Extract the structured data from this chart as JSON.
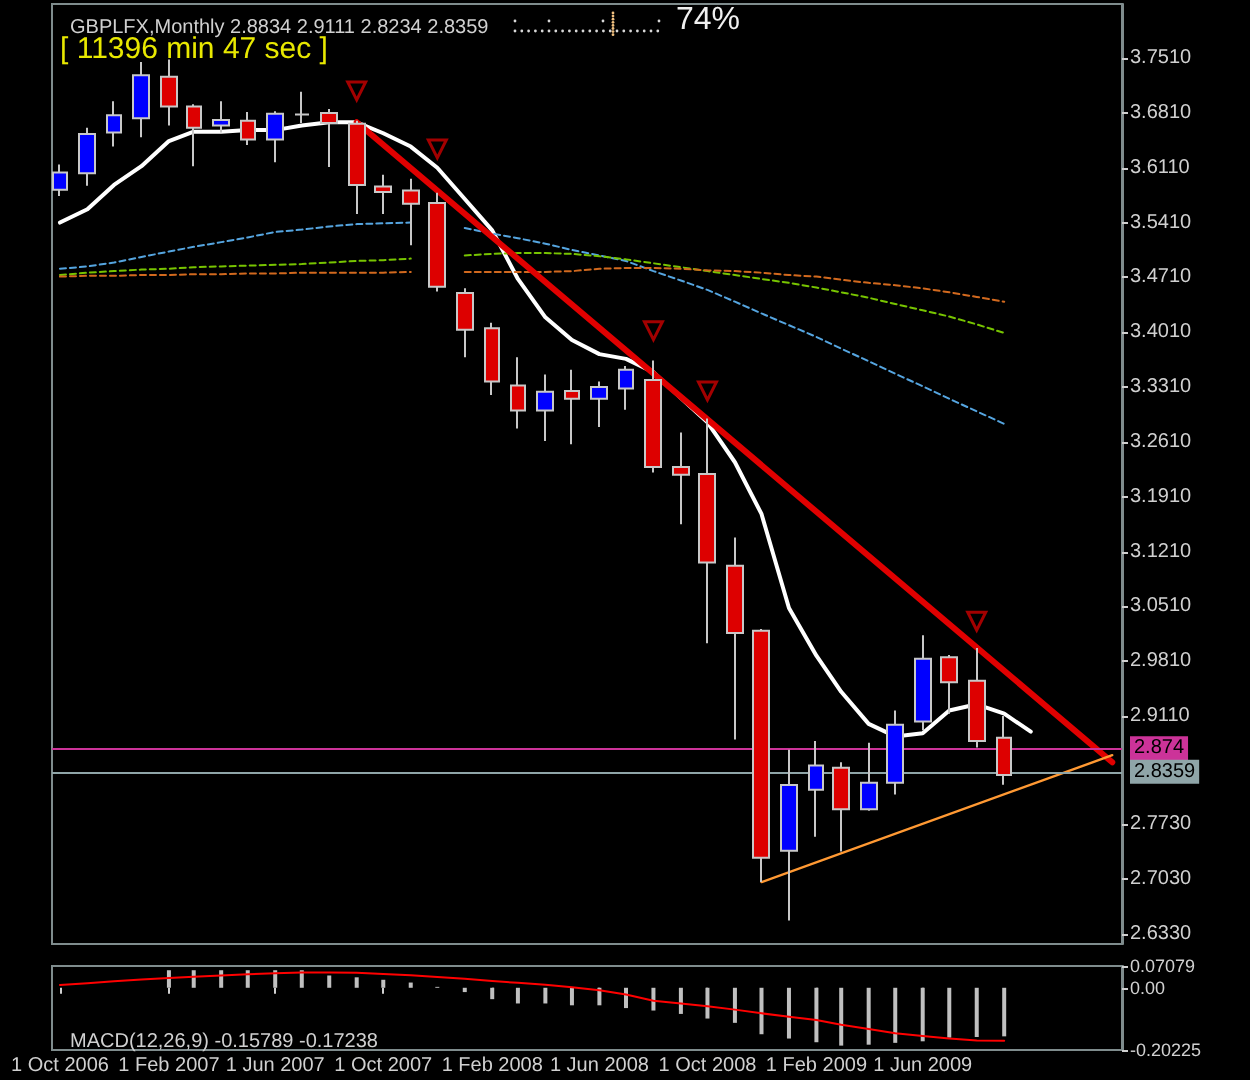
{
  "chart_data": [
    {
      "type": "candlestick",
      "title": "GBPLFX,Monthly 2.8834 2.9111 2.8234 2.8359",
      "annotations": [
        "[ 11396 min 47 sec ]",
        "74%"
      ],
      "x": [
        "2006-10",
        "2006-11",
        "2006-12",
        "2007-01",
        "2007-02",
        "2007-03",
        "2007-04",
        "2007-05",
        "2007-06",
        "2007-07",
        "2007-08",
        "2007-09",
        "2007-10",
        "2007-11",
        "2007-12",
        "2008-01",
        "2008-02",
        "2008-03",
        "2008-04",
        "2008-05",
        "2008-06",
        "2008-07",
        "2008-08",
        "2008-09",
        "2008-10",
        "2008-11",
        "2008-12",
        "2009-01",
        "2009-02",
        "2009-03",
        "2009-04",
        "2009-05",
        "2009-06",
        "2009-07",
        "2009-08",
        "2009-09"
      ],
      "ohlc": [
        [
          3.583,
          3.615,
          3.575,
          3.605
        ],
        [
          3.604,
          3.662,
          3.588,
          3.654
        ],
        [
          3.656,
          3.696,
          3.638,
          3.678
        ],
        [
          3.674,
          3.746,
          3.65,
          3.729
        ],
        [
          3.727,
          3.749,
          3.665,
          3.689
        ],
        [
          3.689,
          3.692,
          3.613,
          3.662
        ],
        [
          3.665,
          3.696,
          3.656,
          3.672
        ],
        [
          3.671,
          3.682,
          3.64,
          3.647
        ],
        [
          3.647,
          3.683,
          3.618,
          3.68
        ],
        [
          3.679,
          3.708,
          3.668,
          3.679
        ],
        [
          3.681,
          3.686,
          3.612,
          3.668
        ],
        [
          3.667,
          3.671,
          3.552,
          3.589
        ],
        [
          3.587,
          3.602,
          3.552,
          3.58
        ],
        [
          3.582,
          3.597,
          3.512,
          3.565
        ],
        [
          3.566,
          3.579,
          3.453,
          3.459
        ],
        [
          3.451,
          3.457,
          3.369,
          3.404
        ],
        [
          3.406,
          3.413,
          3.321,
          3.338
        ],
        [
          3.333,
          3.369,
          3.278,
          3.301
        ],
        [
          3.301,
          3.347,
          3.262,
          3.325
        ],
        [
          3.326,
          3.353,
          3.258,
          3.316
        ],
        [
          3.316,
          3.338,
          3.28,
          3.331
        ],
        [
          3.329,
          3.358,
          3.302,
          3.353
        ],
        [
          3.34,
          3.365,
          3.222,
          3.229
        ],
        [
          3.229,
          3.273,
          3.156,
          3.219
        ],
        [
          3.22,
          3.291,
          3.004,
          3.107
        ],
        [
          3.103,
          3.139,
          2.881,
          3.017
        ],
        [
          3.02,
          3.022,
          2.699,
          2.73
        ],
        [
          2.739,
          2.868,
          2.65,
          2.823
        ],
        [
          2.817,
          2.879,
          2.757,
          2.848
        ],
        [
          2.845,
          2.852,
          2.738,
          2.792
        ],
        [
          2.792,
          2.877,
          2.79,
          2.826
        ],
        [
          2.826,
          2.918,
          2.811,
          2.9
        ],
        [
          2.904,
          3.014,
          2.893,
          2.984
        ],
        [
          2.986,
          2.989,
          2.914,
          2.954
        ],
        [
          2.956,
          2.998,
          2.871,
          2.879
        ],
        [
          2.8834,
          2.9111,
          2.8234,
          2.8359
        ]
      ],
      "colors": [
        "#0000ff",
        "#0000ff",
        "#0000ff",
        "#0000ff",
        "#dd0000",
        "#dd0000",
        "#0000ff",
        "#dd0000",
        "#0000ff",
        "#c8c8c8",
        "#dd0000",
        "#dd0000",
        "#dd0000",
        "#dd0000",
        "#dd0000",
        "#dd0000",
        "#dd0000",
        "#dd0000",
        "#0000ff",
        "#dd0000",
        "#0000ff",
        "#0000ff",
        "#dd0000",
        "#dd0000",
        "#dd0000",
        "#dd0000",
        "#dd0000",
        "#0000ff",
        "#0000ff",
        "#dd0000",
        "#0000ff",
        "#0000ff",
        "#0000ff",
        "#dd0000",
        "#dd0000",
        "#dd0000"
      ],
      "series": [
        {
          "type": "line",
          "color": "#ffffff",
          "x": [
            "2006-10",
            "2006-11",
            "2006-12",
            "2007-01",
            "2007-02",
            "2007-03",
            "2007-04",
            "2007-05",
            "2007-06",
            "2007-07",
            "2007-08",
            "2007-09",
            "2007-10",
            "2007-11",
            "2007-12",
            "2008-01",
            "2008-02",
            "2008-03",
            "2008-04",
            "2008-05",
            "2008-06",
            "2008-07",
            "2008-08",
            "2008-09",
            "2008-10",
            "2008-11",
            "2008-12",
            "2009-01",
            "2009-02",
            "2009-03",
            "2009-04",
            "2009-05",
            "2009-06",
            "2009-07",
            "2009-08",
            "2009-09",
            "2009-10"
          ],
          "values": [
            3.541,
            3.558,
            3.589,
            3.613,
            3.645,
            3.657,
            3.657,
            3.659,
            3.659,
            3.665,
            3.669,
            3.669,
            3.655,
            3.638,
            3.611,
            3.571,
            3.531,
            3.469,
            3.42,
            3.391,
            3.373,
            3.367,
            3.35,
            3.317,
            3.286,
            3.235,
            3.169,
            3.049,
            2.988,
            2.942,
            2.901,
            2.885,
            2.889,
            2.918,
            2.926,
            2.914,
            2.891
          ]
        },
        {
          "type": "line",
          "color": "#55a5e0",
          "line_style": "dashed",
          "values": [
            3.482,
            3.485,
            3.49,
            3.497,
            3.504,
            3.51,
            3.516,
            3.522,
            3.529,
            3.532,
            3.536,
            3.539,
            3.54,
            3.541,
            null,
            3.534,
            3.527,
            3.521,
            3.514,
            3.506,
            3.499,
            3.492,
            3.479,
            3.467,
            3.455,
            3.44,
            3.425,
            3.41,
            3.395,
            3.38,
            3.364,
            3.348,
            3.332,
            3.316,
            3.3,
            3.284
          ]
        },
        {
          "type": "line",
          "color": "#77c400",
          "line_style": "dashed",
          "values": [
            3.474,
            3.477,
            3.479,
            3.481,
            3.482,
            3.484,
            3.485,
            3.486,
            3.487,
            3.488,
            3.49,
            3.492,
            3.493,
            3.495,
            null,
            3.499,
            3.501,
            3.502,
            3.502,
            3.501,
            3.498,
            3.494,
            3.489,
            3.484,
            3.479,
            3.474,
            3.469,
            3.464,
            3.458,
            3.452,
            3.445,
            3.437,
            3.429,
            3.421,
            3.411,
            3.4
          ]
        },
        {
          "type": "line",
          "color": "#d2691e",
          "line_style": "dashed",
          "values": [
            3.472,
            3.473,
            3.473,
            3.474,
            3.474,
            3.475,
            3.475,
            3.476,
            3.476,
            3.477,
            3.477,
            3.477,
            3.477,
            3.478,
            null,
            3.478,
            3.478,
            3.478,
            3.478,
            3.479,
            3.482,
            3.483,
            3.483,
            3.482,
            3.48,
            3.479,
            3.477,
            3.474,
            3.472,
            3.468,
            3.464,
            3.461,
            3.457,
            3.452,
            3.446,
            3.44
          ]
        },
        {
          "type": "line",
          "color": "#e00000",
          "x": [
            "2007-09",
            "2010-01"
          ],
          "values": [
            3.669,
            2.852
          ]
        },
        {
          "type": "line",
          "color": "#ff9933",
          "x": [
            "2008-12",
            "2010-01"
          ],
          "values": [
            2.699,
            2.861
          ]
        },
        {
          "type": "scatter",
          "color": "#cc0000",
          "marker": "triangle",
          "x": [
            "2007-09",
            "2007-12",
            "2008-08",
            "2008-10",
            "2009-08"
          ],
          "values": [
            3.709,
            3.635,
            3.403,
            3.326,
            3.032
          ]
        }
      ],
      "xlim": [
        "2006-09-22",
        "2010-01-12"
      ],
      "ylim": [
        2.62,
        3.82
      ],
      "yticks": [
        {
          "value": 3.751,
          "label": "3.7510"
        },
        {
          "value": 3.681,
          "label": "3.6810"
        },
        {
          "value": 3.611,
          "label": "3.6110"
        },
        {
          "value": 3.541,
          "label": "3.5410"
        },
        {
          "value": 3.471,
          "label": "3.4710"
        },
        {
          "value": 3.401,
          "label": "3.4010"
        },
        {
          "value": 3.331,
          "label": "3.3310"
        },
        {
          "value": 3.261,
          "label": "3.2610"
        },
        {
          "value": 3.191,
          "label": "3.1910"
        },
        {
          "value": 3.121,
          "label": "3.1210"
        },
        {
          "value": 3.051,
          "label": "3.0510"
        },
        {
          "value": 2.981,
          "label": "2.9810"
        },
        {
          "value": 2.911,
          "label": "2.9110"
        },
        {
          "value": 2.773,
          "label": "2.7730"
        },
        {
          "value": 2.703,
          "label": "2.7030"
        },
        {
          "value": 2.633,
          "label": "2.6330"
        }
      ],
      "ref_lines": [
        {
          "axis": "y",
          "value": 2.874,
          "label": "2.874",
          "color": "#cc3399"
        },
        {
          "axis": "y",
          "value": 2.8359,
          "label": "2.8359",
          "color": "#8fa5a8"
        }
      ],
      "tick_labels": "y"
    },
    {
      "type": "bar",
      "title": "MACD(12,26,9) -0.15789 -0.17238",
      "x": [
        "2006-10",
        "2006-11",
        "2006-12",
        "2007-01",
        "2007-02",
        "2007-03",
        "2007-04",
        "2007-05",
        "2007-06",
        "2007-07",
        "2007-08",
        "2007-09",
        "2007-10",
        "2007-11",
        "2007-12",
        "2008-01",
        "2008-02",
        "2008-03",
        "2008-04",
        "2008-05",
        "2008-06",
        "2008-07",
        "2008-08",
        "2008-09",
        "2008-10",
        "2008-11",
        "2008-12",
        "2009-01",
        "2009-02",
        "2009-03",
        "2009-04",
        "2009-05",
        "2009-06",
        "2009-07",
        "2009-08",
        "2009-09"
      ],
      "series": [
        {
          "color": "#c0c0c0",
          "values": [
            null,
            null,
            null,
            null,
            0.057,
            0.057,
            0.057,
            0.057,
            0.057,
            0.057,
            0.04,
            0.034,
            0.026,
            0.017,
            0.003,
            -0.014,
            -0.037,
            -0.051,
            -0.051,
            -0.057,
            -0.057,
            -0.066,
            -0.074,
            -0.085,
            -0.1,
            -0.114,
            -0.151,
            -0.165,
            -0.177,
            -0.188,
            -0.185,
            -0.179,
            -0.174,
            -0.162,
            -0.16,
            -0.15789
          ]
        },
        {
          "type": "line",
          "color": "#ff0000",
          "values": [
            0.009,
            0.015,
            0.021,
            0.027,
            0.032,
            0.036,
            0.04,
            0.044,
            0.047,
            0.05,
            0.05,
            0.049,
            0.045,
            0.041,
            0.035,
            0.029,
            0.022,
            0.016,
            0.01,
            0.002,
            -0.008,
            -0.022,
            -0.042,
            -0.051,
            -0.06,
            -0.071,
            -0.083,
            -0.094,
            -0.105,
            -0.12,
            -0.134,
            -0.148,
            -0.157,
            -0.165,
            -0.171,
            -0.17238
          ]
        }
      ],
      "xlim": [
        "2006-09-22",
        "2010-01-12"
      ],
      "xticks": [
        {
          "value": "2006-10",
          "label": "1 Oct 2006"
        },
        {
          "value": "2007-02",
          "label": "1 Feb 2007"
        },
        {
          "value": "2007-06",
          "label": "1 Jun 2007"
        },
        {
          "value": "2007-10",
          "label": "1 Oct 2007"
        },
        {
          "value": "2008-02",
          "label": "1 Feb 2008"
        },
        {
          "value": "2008-06",
          "label": "1 Jun 2008"
        },
        {
          "value": "2008-10",
          "label": "1 Oct 2008"
        },
        {
          "value": "2009-02",
          "label": "1 Feb 2009"
        },
        {
          "value": "2009-06",
          "label": "1 Jun 2009"
        }
      ],
      "ylim": [
        -0.20225,
        0.07079
      ],
      "yticks": [
        0.07079,
        {
          "value": 0,
          "label": "0.00"
        },
        -0.20225
      ]
    }
  ]
}
